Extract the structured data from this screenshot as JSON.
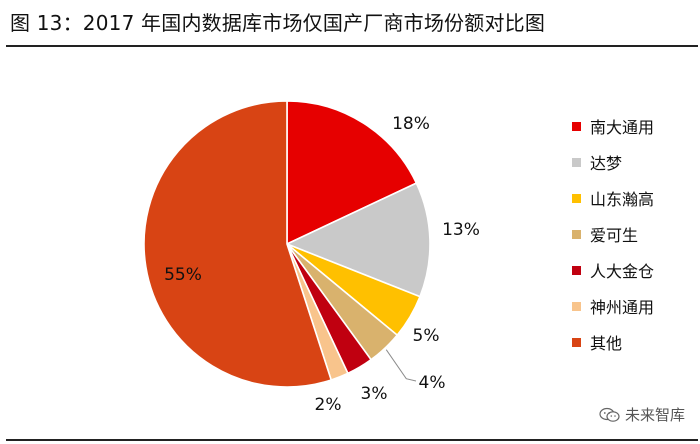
{
  "figure": {
    "title": "图 13：2017 年国内数据库市场仅国产厂商市场份额对比图"
  },
  "chart_data": {
    "type": "pie",
    "title": "图 13：2017 年国内数据库市场仅国产厂商市场份额对比图",
    "start_angle_deg": 0,
    "direction": "clockwise",
    "legend_position": "right",
    "slices": [
      {
        "label": "南大通用",
        "value": 18,
        "display": "18%",
        "color": "#e60000"
      },
      {
        "label": "达梦",
        "value": 13,
        "display": "13%",
        "color": "#c9c9c9"
      },
      {
        "label": "山东瀚高",
        "value": 5,
        "display": "5%",
        "color": "#ffc000"
      },
      {
        "label": "爱可生",
        "value": 4,
        "display": "4%",
        "color": "#d9b26d"
      },
      {
        "label": "人大金仓",
        "value": 3,
        "display": "3%",
        "color": "#c00010"
      },
      {
        "label": "神州通用",
        "value": 2,
        "display": "2%",
        "color": "#f8c48c"
      },
      {
        "label": "其他",
        "value": 55,
        "display": "55%",
        "color": "#d84414"
      }
    ]
  },
  "watermark": {
    "text": "未来智库",
    "icon": "wechat-icon"
  }
}
